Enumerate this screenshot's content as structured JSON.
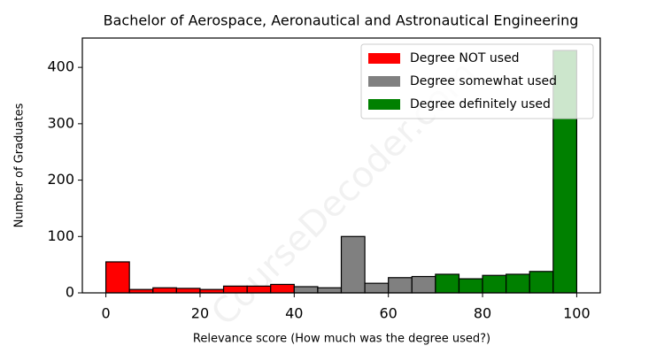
{
  "chart_data": {
    "type": "histogram",
    "title": "Bachelor of Aerospace, Aeronautical and Astronautical Engineering",
    "xlabel": "Relevance score (How much was the degree used?)",
    "ylabel": "Number of Graduates",
    "watermark": "CourseDecoder.com",
    "series": [
      {
        "name": "Degree NOT used",
        "color": "#ff0000",
        "bins": [
          0,
          5,
          10,
          15,
          20,
          25,
          30,
          35,
          40
        ],
        "values": [
          55,
          6,
          9,
          8,
          6,
          12,
          12,
          15
        ]
      },
      {
        "name": "Degree somewhat used",
        "color": "#808080",
        "bins": [
          40,
          45,
          50,
          55,
          60,
          65,
          70
        ],
        "values": [
          11,
          9,
          100,
          17,
          27,
          29
        ]
      },
      {
        "name": "Degree definitely used",
        "color": "#008000",
        "bins": [
          70,
          75,
          80,
          85,
          90,
          95,
          100
        ],
        "values": [
          33,
          25,
          31,
          33,
          38,
          430
        ]
      }
    ],
    "xlim": [
      -5,
      105
    ],
    "ylim": [
      0,
      452
    ],
    "xticks": [
      0,
      20,
      40,
      60,
      80,
      100
    ],
    "yticks": [
      0,
      100,
      200,
      300,
      400
    ],
    "grid": false,
    "legend": "upper right"
  }
}
